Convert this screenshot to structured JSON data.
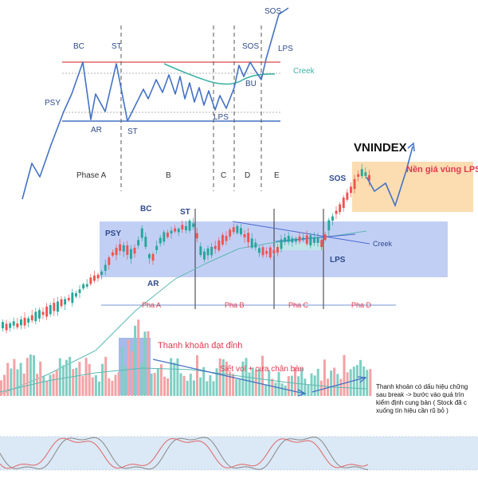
{
  "chart_data": [
    {
      "type": "line",
      "id": "wyckoff-schematic",
      "labels": {
        "psy": "PSY",
        "bc": "BC",
        "st_top": "ST",
        "ar": "AR",
        "st_bottom": "ST",
        "sos_mid": "SOS",
        "sos_top": "SOS",
        "lps_right": "LPS",
        "lps_bottom": "LPS",
        "bu": "BU",
        "creek": "Creek"
      },
      "phases": [
        "Phase A",
        "B",
        "C",
        "D",
        "E"
      ],
      "colors": {
        "price": "#4472c4",
        "creek": "#3fb3a5",
        "resistance": "#e06666",
        "support": "#4472c4"
      }
    },
    {
      "type": "candlestick",
      "id": "vnindex",
      "title": "VNINDEX",
      "labels": {
        "psy": "PSY",
        "bc": "BC",
        "st": "ST",
        "ar": "AR",
        "sos": "SOS",
        "lps": "LPS",
        "creek": "Creek",
        "zone": "Nền giá vùng LPS"
      },
      "phases": [
        "Pha A",
        "Pha B",
        "Pha C",
        "Pha D"
      ],
      "colors": {
        "up": "#26a69a",
        "down": "#ef5350",
        "range_box": "#aebff2",
        "lps_box": "#fbd9a8"
      }
    },
    {
      "type": "bar",
      "id": "volume",
      "labels": {
        "peak": "Thanh khoản đạt đỉnh",
        "squeeze": "Siết vol + cưa chân bàn"
      },
      "note_lines": [
        "Thanh khoản có dấu hiệu chững",
        "sau break -> bước vào quá trìn",
        "kiểm định cung bản ( Stock đã c",
        "xuống tín hiệu cần rũ bỏ )"
      ],
      "colors": {
        "up": "#7fcfc4",
        "down": "#f2a3a6",
        "highlight": "#8ea7e6"
      }
    },
    {
      "type": "line",
      "id": "stochastic-oscillator",
      "colors": {
        "fast": "#888888",
        "slow": "#e06666",
        "band": "#dbe8f5"
      }
    }
  ]
}
